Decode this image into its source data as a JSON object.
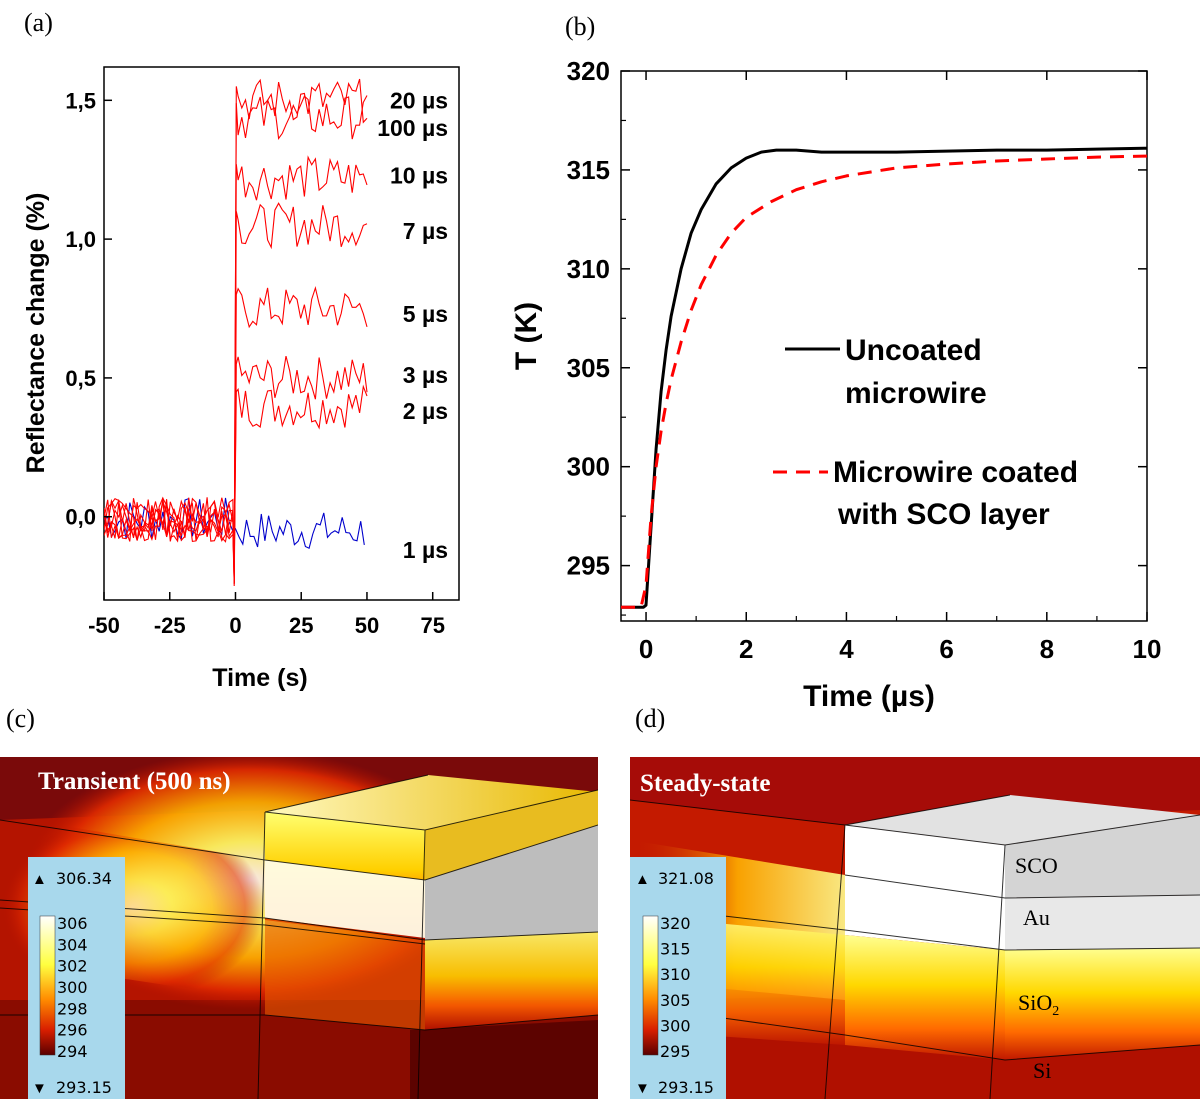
{
  "panel_labels": [
    "(a)",
    "(b)",
    "(c)",
    "(d)"
  ],
  "chart_data": [
    {
      "type": "line",
      "panel": "(a)",
      "xlabel": "Time (s)",
      "ylabel": "Reflectance change (%)",
      "xlim": [
        -50,
        85
      ],
      "ylim": [
        -0.3,
        1.62
      ],
      "xticks": [
        -50,
        -25,
        0,
        25,
        50,
        75
      ],
      "xtick_labels": [
        "-50",
        "-25",
        "0",
        "25",
        "50",
        "75"
      ],
      "yticks": [
        0.0,
        0.5,
        1.0,
        1.5
      ],
      "ytick_labels": [
        "0,0",
        "0,5",
        "1,0",
        "1,5"
      ],
      "series": [
        {
          "name": "1 µs",
          "color": "#0000cc",
          "level": -0.05
        },
        {
          "name": "2 µs",
          "color": "#ff0000",
          "level": 0.4
        },
        {
          "name": "3 µs",
          "color": "#ff0000",
          "level": 0.5
        },
        {
          "name": "5 µs",
          "color": "#ff0000",
          "level": 0.75
        },
        {
          "name": "7 µs",
          "color": "#ff0000",
          "level": 1.05
        },
        {
          "name": "10 µs",
          "color": "#ff0000",
          "level": 1.22
        },
        {
          "name": "100 µs",
          "color": "#ff0000",
          "level": 1.44
        },
        {
          "name": "20 µs",
          "color": "#ff0000",
          "level": 1.5
        }
      ],
      "labels": [
        {
          "text": "20 µs",
          "y": 1.5
        },
        {
          "text": "100 µs",
          "y": 1.4
        },
        {
          "text": "10 µs",
          "y": 1.23
        },
        {
          "text": "7 µs",
          "y": 1.03
        },
        {
          "text": "5 µs",
          "y": 0.73
        },
        {
          "text": "3 µs",
          "y": 0.51
        },
        {
          "text": "2 µs",
          "y": 0.38
        },
        {
          "text": "1 µs",
          "y": -0.12
        }
      ]
    },
    {
      "type": "line",
      "panel": "(b)",
      "xlabel": "Time (µs)",
      "ylabel": "T (K)",
      "xlim": [
        -0.5,
        10
      ],
      "ylim": [
        292.2,
        320
      ],
      "xticks": [
        0,
        2,
        4,
        6,
        8,
        10
      ],
      "xtick_labels": [
        "0",
        "2",
        "4",
        "6",
        "8",
        "10"
      ],
      "yticks": [
        295,
        300,
        305,
        310,
        315,
        320
      ],
      "ytick_labels": [
        "295",
        "300",
        "305",
        "310",
        "315",
        "320"
      ],
      "series": [
        {
          "name": "Uncoated microwire",
          "color": "#000000",
          "dash": "solid",
          "x": [
            -0.5,
            -0.05,
            0.0,
            0.1,
            0.2,
            0.3,
            0.4,
            0.5,
            0.7,
            0.9,
            1.1,
            1.4,
            1.7,
            2.0,
            2.3,
            2.6,
            3.0,
            3.5,
            4.0,
            5.0,
            6.0,
            7.0,
            8.0,
            9.0,
            10.0
          ],
          "y": [
            292.9,
            292.9,
            293.0,
            297.0,
            300.9,
            303.8,
            305.9,
            307.6,
            310.0,
            311.8,
            313.0,
            314.3,
            315.1,
            315.6,
            315.9,
            316.0,
            316.0,
            315.9,
            315.9,
            315.9,
            315.95,
            316.0,
            316.0,
            316.05,
            316.1
          ]
        },
        {
          "name": "Microwire coated with SCO layer",
          "color": "#ff0000",
          "dash": "dashed",
          "x": [
            -0.5,
            -0.1,
            0.0,
            0.1,
            0.2,
            0.3,
            0.4,
            0.5,
            0.7,
            0.9,
            1.1,
            1.4,
            1.7,
            2.0,
            2.5,
            3.0,
            3.5,
            4.0,
            5.0,
            6.0,
            7.0,
            8.0,
            9.0,
            10.0
          ],
          "y": [
            292.9,
            292.9,
            294.0,
            297.5,
            300.0,
            301.8,
            303.2,
            304.4,
            306.3,
            307.9,
            309.2,
            310.7,
            311.8,
            312.6,
            313.4,
            314.0,
            314.4,
            314.7,
            315.1,
            315.3,
            315.45,
            315.55,
            315.65,
            315.7
          ]
        }
      ],
      "legend": [
        {
          "line1": "Uncoated",
          "line2": "microwire"
        },
        {
          "line1": "Microwire coated",
          "line2": "with SCO layer"
        }
      ]
    }
  ],
  "panel_c": {
    "title": "Transient (500 ns)",
    "max_label": "306.34",
    "min_label": "293.15",
    "colorbar_ticks": [
      "306",
      "304",
      "302",
      "300",
      "298",
      "296",
      "294"
    ]
  },
  "panel_d": {
    "title": "Steady-state",
    "max_label": "321.08",
    "min_label": "293.15",
    "colorbar_ticks": [
      "320",
      "315",
      "310",
      "305",
      "300",
      "295"
    ],
    "layers": {
      "sco": "SCO",
      "au": "Au",
      "sio2": "SiO",
      "sio2_sub": "2",
      "si": "Si"
    }
  },
  "colors": {
    "uncoated": "#000000",
    "coated": "#ff0000",
    "trace_red": "#ff0000",
    "trace_blue": "#0000cc"
  }
}
